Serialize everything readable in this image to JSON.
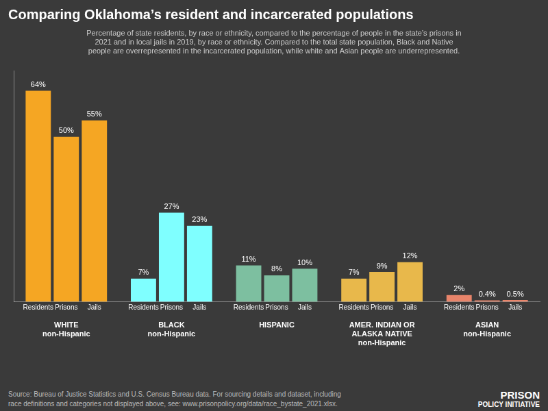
{
  "chart_data": {
    "type": "bar",
    "title": "Comparing Oklahoma’s resident and incarcerated populations",
    "subtitle": "Percentage of state residents, by race or ethnicity, compared to the percentage of people in the state’s prisons in\n2021 and in local jails in 2019, by race or ethnicity. Compared to the total state population, Black and Native\npeople are overrepresented in the incarcerated population, while white and Asian people are underrepresented.",
    "source": "Source: Bureau of Justice Statistics and U.S. Census Bureau data. For sourcing details and dataset, including\nrace definitions and categories not displayed above, see: www.prisonpolicy.org/data/race_bystate_2021.xlsx.",
    "annotations": [
      "PRISON",
      "POLICY INITIATIVE"
    ],
    "categories": [
      "WHITE\nnon-Hispanic",
      "BLACK\nnon-Hispanic",
      "HISPANIC",
      "AMER. INDIAN OR\nALASKA NATIVE\nnon-Hispanic",
      "ASIAN\nnon-Hispanic"
    ],
    "series": [
      {
        "name": "Residents",
        "values": [
          64,
          7,
          11,
          7,
          2
        ],
        "value_labels": [
          "64%",
          "7%",
          "11%",
          "7%",
          "2%"
        ],
        "colors": [
          "#f5a623",
          "#7fffff",
          "#7dbfa0",
          "#e8b84b",
          "#e8846a"
        ]
      },
      {
        "name": "Prisons",
        "values": [
          50,
          27,
          8,
          9,
          0.4
        ],
        "value_labels": [
          "50%",
          "27%",
          "8%",
          "9%",
          "0.4%"
        ],
        "colors": [
          "#f5a623",
          "#7fffff",
          "#7dbfa0",
          "#e8b84b",
          "#e8846a"
        ]
      },
      {
        "name": "Jails",
        "values": [
          55,
          23,
          10,
          12,
          0.5
        ],
        "value_labels": [
          "55%",
          "23%",
          "10%",
          "12%",
          "0.5%"
        ],
        "colors": [
          "#f5a623",
          "#7fffff",
          "#7dbfa0",
          "#e8b84b",
          "#e8846a"
        ]
      }
    ],
    "ylim": [
      0,
      70
    ],
    "grid": false,
    "data_labels": true,
    "tick_labels": "x"
  }
}
